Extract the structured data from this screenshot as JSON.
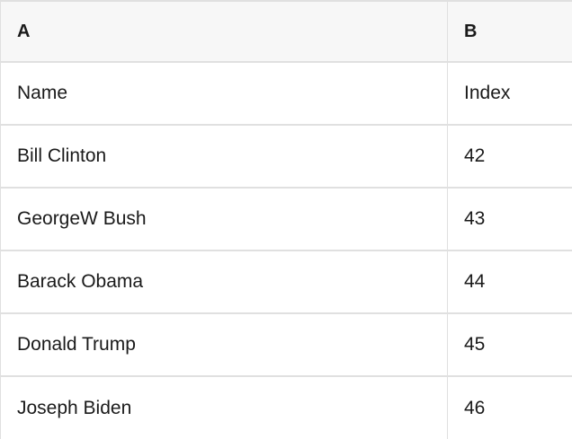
{
  "table": {
    "columns": [
      {
        "label": "A"
      },
      {
        "label": "B"
      }
    ],
    "rows": [
      {
        "a": "Name",
        "b": "Index"
      },
      {
        "a": "Bill Clinton",
        "b": "42"
      },
      {
        "a": "GeorgeW Bush",
        "b": "43"
      },
      {
        "a": "Barack Obama",
        "b": "44"
      },
      {
        "a": "Donald Trump",
        "b": "45"
      },
      {
        "a": "Joseph Biden",
        "b": "46"
      }
    ]
  },
  "colors": {
    "header_background": "#f7f7f7",
    "border": "#e0e0e0",
    "text": "#1a1a1a",
    "row_background": "#ffffff"
  }
}
